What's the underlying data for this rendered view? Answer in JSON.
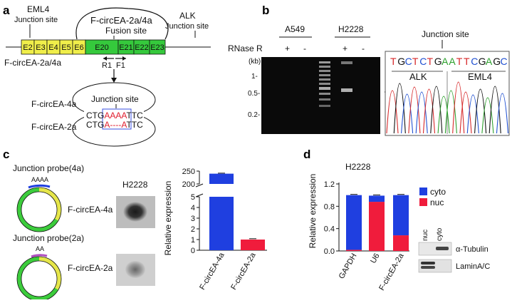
{
  "panels": {
    "a": "a",
    "b": "b",
    "c": "c",
    "d": "d"
  },
  "panel_a": {
    "top_eml4": "EML4",
    "top_eml4_sub": "Junction site",
    "top_fcirc": "F-circEA-2a/4a",
    "top_fusion": "Fusion site",
    "top_alk": "ALK",
    "top_alk_sub": "Junction site",
    "exons": [
      "E2",
      "E3",
      "E4",
      "E5",
      "E6",
      "E20",
      "E21",
      "E22",
      "E23"
    ],
    "left_label": "F-circEA-2a/4a",
    "primers": [
      "R1",
      "F1"
    ],
    "circ4a_label": "F-circEA-4a",
    "circ2a_label": "F-circEA-2a",
    "junction_site": "Junction site",
    "seq4a_left": "CTG",
    "seq4a_mid": "AAAA",
    "seq4a_right": "TTC",
    "seq2a_left": "CTG",
    "seq2a_mid": "A----A",
    "seq2a_right": "TTC"
  },
  "panel_b": {
    "lane_groups": [
      "A549",
      "H2228"
    ],
    "rnase_label": "RNase R",
    "signs": [
      "+",
      "-",
      "+",
      "-"
    ],
    "kb_label": "(kb)",
    "kb_ticks": [
      "1-",
      "0.5-",
      "0.2-"
    ],
    "junction_site": "Junction site",
    "sequence": [
      "T",
      "G",
      "C",
      "T",
      "C",
      "T",
      "G",
      "A",
      "A",
      "T",
      "T",
      "C",
      "G",
      "A",
      "G",
      "C"
    ],
    "seq_colors": [
      "#d62728",
      "#111111",
      "#1f4fd1",
      "#d62728",
      "#1f4fd1",
      "#d62728",
      "#111111",
      "#2ca02c",
      "#2ca02c",
      "#d62728",
      "#d62728",
      "#1f4fd1",
      "#111111",
      "#2ca02c",
      "#111111",
      "#1f4fd1"
    ],
    "alk": "ALK",
    "eml4": "EML4"
  },
  "panel_c": {
    "probe4a": "Junction probe(4a)",
    "probe4a_seq": "AAAA",
    "probe2a": "Junction probe(2a)",
    "probe2a_seq": "AA",
    "h2228": "H2228",
    "dot_label_4a": "F-circEA-4a",
    "dot_label_2a": "F-circEA-2a"
  },
  "panel_d": {
    "title": "H2228",
    "legend": [
      "cyto",
      "nuc"
    ],
    "blot_lanes": [
      "nuc",
      "cyto"
    ],
    "blot_labels": [
      "α-Tubulin",
      "LaminA/C"
    ]
  },
  "chart_data": [
    {
      "type": "bar",
      "categories": [
        "F-circEA-4a",
        "F-circEA-2a"
      ],
      "values": [
        240,
        1
      ],
      "errors": [
        2,
        0.08
      ],
      "colors": [
        "#1f3fe0",
        "#f01c3c"
      ],
      "ylabel": "Relative expression",
      "ylim": [
        0,
        250
      ],
      "axis_break": [
        5,
        200
      ],
      "yticks_lower": [
        "0",
        "1",
        "2",
        "3",
        "4",
        "5"
      ],
      "yticks_upper": [
        "200",
        "250"
      ]
    },
    {
      "type": "bar",
      "stacked": true,
      "categories": [
        "GAPDH",
        "U6",
        "F-circEA-2a"
      ],
      "series": [
        {
          "name": "nuc",
          "values": [
            0.02,
            0.88,
            0.28
          ],
          "color": "#f01c3c"
        },
        {
          "name": "cyto",
          "values": [
            0.98,
            0.11,
            0.72
          ],
          "color": "#1f3fe0"
        }
      ],
      "ylabel": "Relative expression",
      "ylim": [
        0,
        1.2
      ],
      "yticks": [
        "0.0",
        "0.4",
        "0.8",
        "1.2"
      ]
    }
  ]
}
